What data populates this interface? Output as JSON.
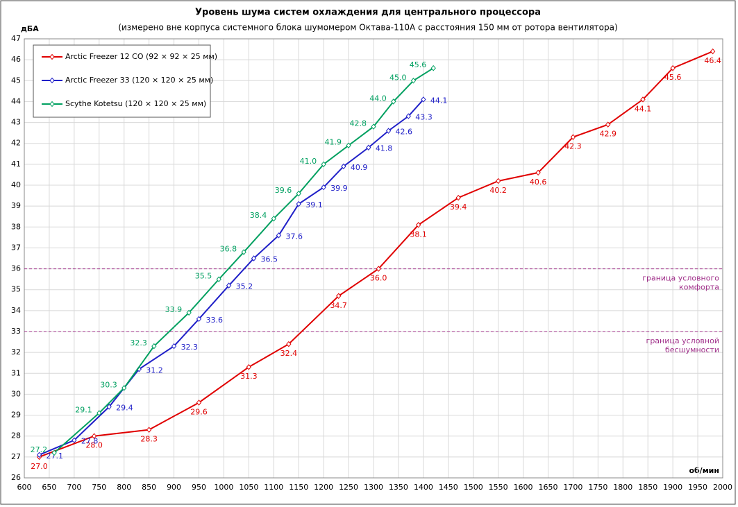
{
  "chart_data": {
    "type": "line",
    "title": "Уровень шума систем охлаждения для центрального процессора",
    "subtitle": "(измерено вне корпуса системного блока шумомером Октава-110А с расстояния 150 мм от ротора вентилятора)",
    "xlabel": "об/мин",
    "ylabel": "дБА",
    "xlim": [
      600,
      2000
    ],
    "ylim": [
      26,
      47
    ],
    "xticks": [
      600,
      650,
      700,
      750,
      800,
      850,
      900,
      950,
      1000,
      1050,
      1100,
      1150,
      1200,
      1250,
      1300,
      1350,
      1400,
      1450,
      1500,
      1550,
      1600,
      1650,
      1700,
      1750,
      1800,
      1850,
      1900,
      1950,
      2000
    ],
    "yticks": [
      26,
      27,
      28,
      29,
      30,
      31,
      32,
      33,
      34,
      35,
      36,
      37,
      38,
      39,
      40,
      41,
      42,
      43,
      44,
      45,
      46,
      47
    ],
    "grid": true,
    "legend": "upper left",
    "series": [
      {
        "name": "Arctic Freezer 12 CO (92 × 92 × 25 мм)",
        "color": "#e00000",
        "x": [
          630,
          740,
          850,
          950,
          1050,
          1130,
          1230,
          1310,
          1390,
          1470,
          1550,
          1630,
          1700,
          1770,
          1840,
          1900,
          1980
        ],
        "values": [
          27.0,
          28.0,
          28.3,
          29.6,
          31.3,
          32.4,
          34.7,
          36.0,
          38.1,
          39.4,
          40.2,
          40.6,
          42.3,
          42.9,
          44.1,
          45.6,
          46.4
        ],
        "value_labels": [
          "27.0",
          "28.0",
          "28.3",
          "29.6",
          "31.3",
          "32.4",
          "34.7",
          "36.0",
          "38.1",
          "39.4",
          "40.2",
          "40.6",
          "42.3",
          "42.9",
          "44.1",
          "45.6",
          "46.4"
        ]
      },
      {
        "name": "Arctic Freezer 33 (120 × 120 × 25 мм)",
        "color": "#2020c8",
        "x": [
          630,
          700,
          770,
          830,
          900,
          950,
          1010,
          1060,
          1110,
          1150,
          1200,
          1240,
          1290,
          1330,
          1370,
          1400
        ],
        "values": [
          27.1,
          27.8,
          29.4,
          31.2,
          32.3,
          33.6,
          35.2,
          36.5,
          37.6,
          39.1,
          39.9,
          40.9,
          41.8,
          42.6,
          43.3,
          44.1
        ],
        "value_labels": [
          "27.1",
          "27.8",
          "29.4",
          "31.2",
          "32.3",
          "33.6",
          "35.2",
          "36.5",
          "37.6",
          "39.1",
          "39.9",
          "40.9",
          "41.8",
          "42.6",
          "43.3",
          "44.1"
        ]
      },
      {
        "name": "Scythe Kotetsu (120 × 120 × 25 мм)",
        "color": "#00a060",
        "x": [
          660,
          750,
          800,
          860,
          930,
          990,
          1040,
          1100,
          1150,
          1200,
          1250,
          1300,
          1340,
          1380,
          1420
        ],
        "values": [
          27.2,
          29.1,
          30.3,
          32.3,
          33.9,
          35.5,
          36.8,
          38.4,
          39.6,
          41.0,
          41.9,
          42.8,
          44.0,
          45.0,
          45.6
        ],
        "value_labels": [
          "27.2",
          "29.1",
          "30.3",
          "32.3",
          "33.9",
          "35.5",
          "36.8",
          "38.4",
          "39.6",
          "41.0",
          "41.9",
          "42.8",
          "44.0",
          "45.0",
          "45.6"
        ]
      }
    ],
    "reference_lines": [
      {
        "value": 36,
        "color": "#a0308a",
        "label": [
          "граница  условного",
          "комфорта"
        ]
      },
      {
        "value": 33,
        "color": "#a0308a",
        "label": [
          "граница  условной",
          "бесшумности"
        ]
      }
    ]
  }
}
